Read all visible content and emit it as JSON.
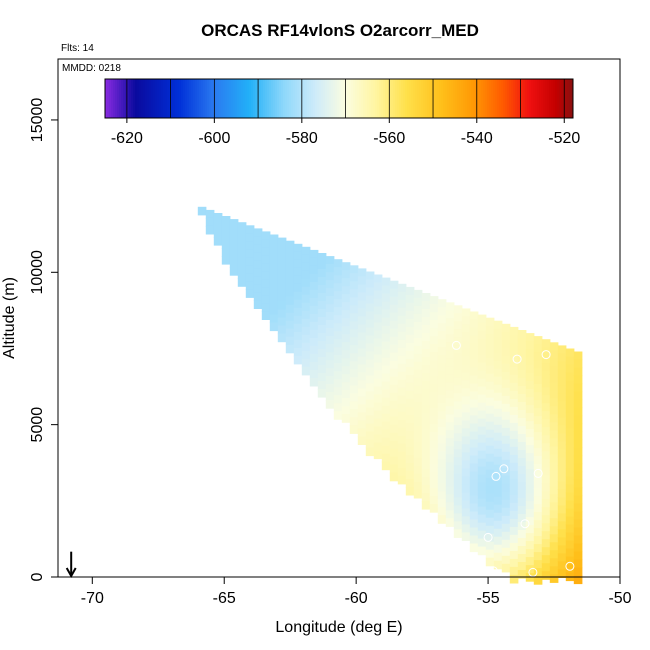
{
  "chart_data": {
    "type": "heatmap",
    "title": "ORCAS RF14vlonS O2arcorr_MED",
    "flts_label": "Flts: 14",
    "mmdd_label": "MMDD: 0218",
    "xlabel": "Longitude (deg E)",
    "ylabel": "Altitude (m)",
    "xlim": [
      -71.3,
      -50
    ],
    "ylim": [
      0,
      17000
    ],
    "xticks": [
      -70,
      -65,
      -60,
      -55,
      -50
    ],
    "xtick_labels": [
      "-70",
      "-65",
      "-60",
      "-55",
      "-50"
    ],
    "yticks": [
      0,
      5000,
      10000,
      15000
    ],
    "ytick_labels": [
      "0",
      "5000",
      "10000",
      "15000"
    ],
    "colorbar": {
      "range": [
        -625,
        -518
      ],
      "ticks": [
        -620,
        -600,
        -580,
        -560,
        -540,
        -520
      ],
      "tick_labels": [
        "-620",
        "-600",
        "-580",
        "-560",
        "-540",
        "-520"
      ],
      "boundaries": [
        -625,
        -620,
        -615,
        -610,
        -605,
        -600,
        -595,
        -590,
        -585,
        -580,
        -575,
        -570,
        -565,
        -560,
        -555,
        -550,
        -545,
        -540,
        -535,
        -530,
        -525,
        -520,
        -518
      ],
      "stops": [
        {
          "v": -625,
          "color": "#8a2be2"
        },
        {
          "v": -618,
          "color": "#0a0a9e"
        },
        {
          "v": -608,
          "color": "#0030d8"
        },
        {
          "v": -600,
          "color": "#2a7af0"
        },
        {
          "v": -592,
          "color": "#22b0f8"
        },
        {
          "v": -584,
          "color": "#8fd8fa"
        },
        {
          "v": -577,
          "color": "#cdebfa"
        },
        {
          "v": -570,
          "color": "#fbfde0"
        },
        {
          "v": -563,
          "color": "#fff5a0"
        },
        {
          "v": -556,
          "color": "#ffe04a"
        },
        {
          "v": -548,
          "color": "#ffbf1a"
        },
        {
          "v": -541,
          "color": "#ff9a05"
        },
        {
          "v": -534,
          "color": "#ff5a00"
        },
        {
          "v": -528,
          "color": "#f01010"
        },
        {
          "v": -522,
          "color": "#c40000"
        },
        {
          "v": -518,
          "color": "#8a1010"
        }
      ]
    },
    "field": {
      "description": "gridded O2arcorr median curtain below the flight path",
      "lon_range": [
        -66.0,
        -51.6
      ],
      "top_lon": [
        -66.0,
        -51.6
      ],
      "top_alt": [
        12200,
        7400
      ],
      "bottom_lon": [
        -54.0,
        -51.8
      ],
      "value_model": {
        "base": -557,
        "alt_coef": -0.0022,
        "lon_coef": 1.9,
        "lon_ref": -60,
        "hot_center_lon": -54.6,
        "hot_center_alt": 2500,
        "hot_strength": 14,
        "min": -582,
        "max": -528
      }
    },
    "points": [
      {
        "lon": -56.2,
        "alt": 7600
      },
      {
        "lon": -53.9,
        "alt": 7150
      },
      {
        "lon": -52.8,
        "alt": 7300
      },
      {
        "lon": -54.4,
        "alt": 3550
      },
      {
        "lon": -54.7,
        "alt": 3300
      },
      {
        "lon": -53.1,
        "alt": 3400
      },
      {
        "lon": -55.0,
        "alt": 1300
      },
      {
        "lon": -53.6,
        "alt": 1750
      },
      {
        "lon": -54.8,
        "alt": 200
      },
      {
        "lon": -53.3,
        "alt": 150
      },
      {
        "lon": -51.9,
        "alt": 350
      }
    ],
    "wind_arrow": {
      "lon": -70.8,
      "alt": 700
    }
  }
}
